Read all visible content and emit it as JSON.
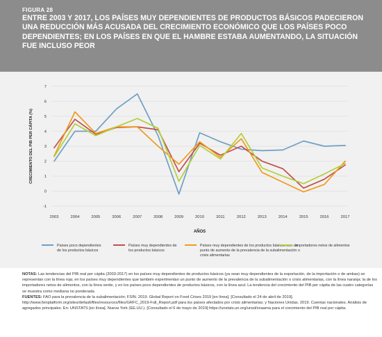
{
  "figure": {
    "label": "FIGURA 28",
    "title": "ENTRE 2003 Y 2017, LOS PAÍSES MUY DEPENDIENTES DE PRODUCTOS BÁSICOS PADECIERON UNA REDUCCIÓN MÁS ACUSADA DEL CRECIMIENTO ECONÓMICO QUE LOS PAÍSES POCO DEPENDIENTES; EN LOS PAÍSES EN QUE EL HAMBRE ESTABA AUMENTANDO, LA SITUACIÓN FUE INCLUSO PEOR"
  },
  "notes": {
    "notas_label": "NOTAS:",
    "notas_text": "Las tendencias del PIB real per cápita (2003-2017) en los países muy dependientes de productos básicos (ya sean muy dependientes de la exportación, de la importación o de ambas) se representan con la línea roja; en los países muy dependientes que también experimentan un punto de aumento de la prevalencia de la subalimentación o crisis alimentarias, con la línea naranja; la de los importadores netos de alimentos, con la línea verde, y en los países poco dependientes de productos básicos, con la línea azul. La tendencia del crecimiento del PIB per cápita de las cuatro categorías se muestra como mediana no ponderada.",
    "fuentes_label": "FUENTES:",
    "fuentes_text": "FAO para la prevalencia de la subalimentación; FSIN. 2019. Global Report on Food Crises 2019 [en línea]. [Consultado el 24 de abril de 2019]. http://www.fsinplatform.org/sites/default/files/resources/files/GRFC_2019-Full_Report.pdf para los países afectados por crisis alimentarias; y Naciones Unidas. 2019. Cuentas nacionales. Análisis de agregados principales. En: UNSTATS [en línea]. Nueva York (EE.UU.). [Consultado el 6 de mayo de 2019] https://unstats.un.org/unsd/snaama para el crecimiento del PIB real per cápita."
  },
  "chart_data": {
    "type": "line",
    "xlabel": "AÑOS",
    "ylabel": "CRECIMIENTO DEL PIB PER CÁPITA (%)",
    "ylim": [
      -1,
      7
    ],
    "yticks": [
      -1,
      0,
      1,
      2,
      3,
      4,
      5,
      6,
      7
    ],
    "grid": true,
    "legend_position": "bottom",
    "categories": [
      "2003",
      "2004",
      "2005",
      "2006",
      "2007",
      "2008",
      "2009",
      "2010",
      "2011",
      "2012",
      "2013",
      "2014",
      "2015",
      "2016",
      "2017"
    ],
    "series": [
      {
        "name": "Países poco dependientes de los productos básicos",
        "color": "#6f9fc4",
        "values": [
          2.0,
          4.0,
          4.0,
          5.5,
          6.5,
          3.7,
          -0.2,
          3.9,
          3.3,
          2.8,
          2.7,
          2.75,
          3.35,
          3.0,
          3.05
        ]
      },
      {
        "name": "Países muy dependientes de los productos básicos",
        "color": "#c0504d",
        "values": [
          2.9,
          4.8,
          3.8,
          4.25,
          4.3,
          4.1,
          1.3,
          3.2,
          2.4,
          3.0,
          2.0,
          1.5,
          0.2,
          0.8,
          1.75
        ]
      },
      {
        "name": "Países muy dependientes de los productos básicos con un punto de aumento de la prevalencia de la subalimentación o crisis alimentarias",
        "color": "#f09a1c",
        "values": [
          2.35,
          5.3,
          3.85,
          4.3,
          4.3,
          3.0,
          1.8,
          3.3,
          2.25,
          3.5,
          1.25,
          0.6,
          -0.05,
          0.45,
          2.0
        ]
      },
      {
        "name": "Importadores netos de alimentos",
        "color": "#b3cf3d",
        "values": [
          2.3,
          4.5,
          3.7,
          4.3,
          4.85,
          4.2,
          0.65,
          3.05,
          2.15,
          3.85,
          1.55,
          1.0,
          0.5,
          1.15,
          1.85
        ]
      }
    ]
  }
}
